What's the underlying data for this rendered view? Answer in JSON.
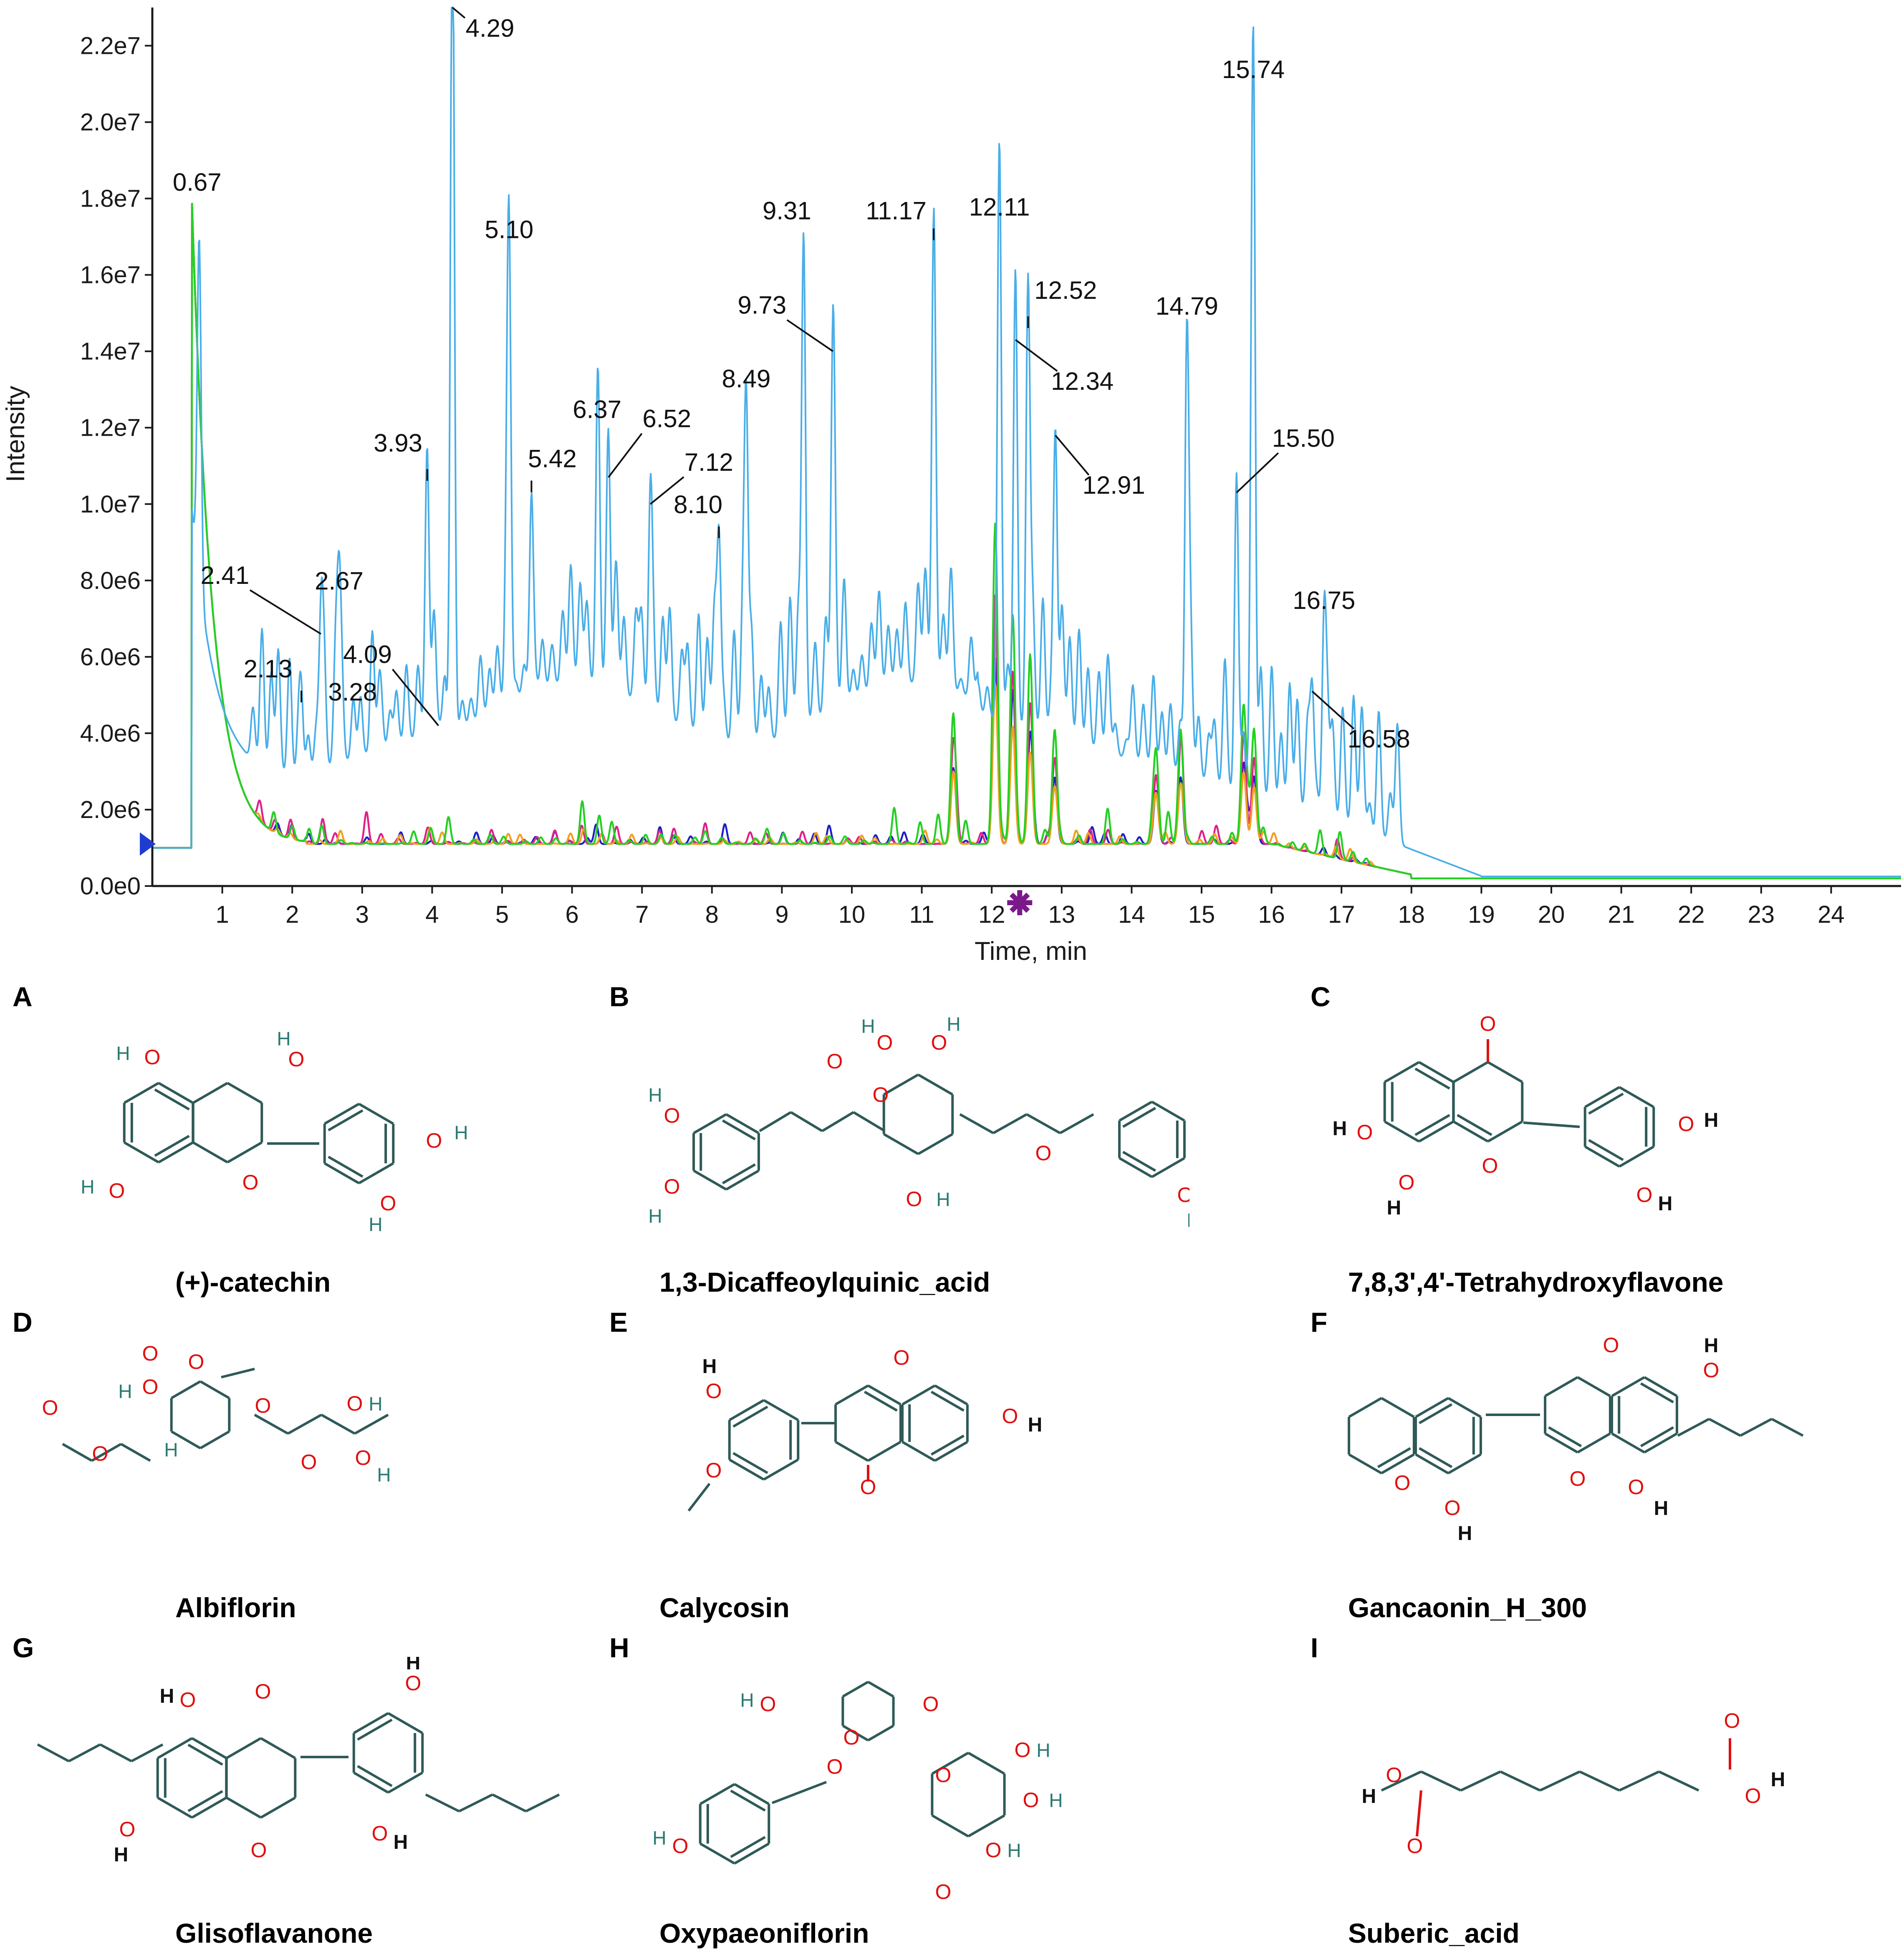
{
  "chart_data": {
    "type": "line",
    "xlabel": "Time, min",
    "ylabel": "Intensity",
    "xlim": [
      0,
      25
    ],
    "ylim": [
      0,
      23000000
    ],
    "x_ticks": [
      "1",
      "2",
      "3",
      "4",
      "5",
      "6",
      "7",
      "8",
      "9",
      "10",
      "11",
      "12",
      "13",
      "14",
      "15",
      "16",
      "17",
      "18",
      "19",
      "20",
      "21",
      "22",
      "23",
      "24"
    ],
    "y_ticks": [
      "0.0e0",
      "2.0e6",
      "4.0e6",
      "6.0e6",
      "8.0e6",
      "1.0e7",
      "1.2e7",
      "1.4e7",
      "1.6e7",
      "1.8e7",
      "2.0e7",
      "2.2e7"
    ],
    "y_tick_values": [
      0,
      2000000,
      4000000,
      6000000,
      8000000,
      10000000,
      12000000,
      14000000,
      16000000,
      18000000,
      20000000,
      22000000
    ],
    "peaks": [
      {
        "label": "0.67",
        "x": 0.67,
        "y": 17000000
      },
      {
        "label": "2.13",
        "x": 2.13,
        "y": 4700000
      },
      {
        "label": "2.41",
        "x": 2.41,
        "y": 6600000
      },
      {
        "label": "2.67",
        "x": 2.67,
        "y": 7000000
      },
      {
        "label": "3.28",
        "x": 3.28,
        "y": 4200000
      },
      {
        "label": "3.93",
        "x": 3.93,
        "y": 10500000
      },
      {
        "label": "4.09",
        "x": 4.09,
        "y": 4200000
      },
      {
        "label": "4.29",
        "x": 4.29,
        "y": 23000000
      },
      {
        "label": "5.10",
        "x": 5.1,
        "y": 16200000
      },
      {
        "label": "5.42",
        "x": 5.42,
        "y": 10200000
      },
      {
        "label": "6.37",
        "x": 6.37,
        "y": 11600000
      },
      {
        "label": "6.52",
        "x": 6.52,
        "y": 10700000
      },
      {
        "label": "7.12",
        "x": 7.12,
        "y": 10000000
      },
      {
        "label": "8.10",
        "x": 8.1,
        "y": 9000000
      },
      {
        "label": "8.49",
        "x": 8.49,
        "y": 12400000
      },
      {
        "label": "9.31",
        "x": 9.31,
        "y": 16800000
      },
      {
        "label": "9.73",
        "x": 9.73,
        "y": 14000000
      },
      {
        "label": "11.17",
        "x": 11.17,
        "y": 16800000
      },
      {
        "label": "12.11",
        "x": 12.11,
        "y": 16900000
      },
      {
        "label": "12.34",
        "x": 12.34,
        "y": 14300000
      },
      {
        "label": "12.52",
        "x": 12.52,
        "y": 14500000
      },
      {
        "label": "12.91",
        "x": 12.91,
        "y": 11800000
      },
      {
        "label": "14.79",
        "x": 14.79,
        "y": 14300000
      },
      {
        "label": "15.50",
        "x": 15.5,
        "y": 10300000
      },
      {
        "label": "15.74",
        "x": 15.74,
        "y": 20500000
      },
      {
        "label": "16.58",
        "x": 16.58,
        "y": 5100000
      },
      {
        "label": "16.75",
        "x": 16.75,
        "y": 6600000
      }
    ],
    "series": [
      {
        "color": "#4aaee8"
      },
      {
        "color": "#1e1ec8"
      },
      {
        "color": "#e0208a"
      },
      {
        "color": "#f0a020"
      },
      {
        "color": "#24d024"
      }
    ],
    "colors": {
      "axis": "#1a1a1a",
      "start_marker": "#1e3ccf",
      "end_marker": "#7a1a8a"
    }
  },
  "panels": [
    {
      "letter": "A",
      "name": "(+)-catechin"
    },
    {
      "letter": "B",
      "name": "1,3-Dicaffeoylquinic_acid"
    },
    {
      "letter": "C",
      "name": "7,8,3',4'-Tetrahydroxyflavone"
    },
    {
      "letter": "D",
      "name": "Albiflorin"
    },
    {
      "letter": "E",
      "name": "Calycosin"
    },
    {
      "letter": "F",
      "name": "Gancaonin_H_300"
    },
    {
      "letter": "G",
      "name": "Glisoflavanone"
    },
    {
      "letter": "H",
      "name": "Oxypaeoniflorin"
    },
    {
      "letter": "I",
      "name": "Suberic_acid"
    }
  ],
  "atoms": {
    "O": "O",
    "H": "H"
  }
}
